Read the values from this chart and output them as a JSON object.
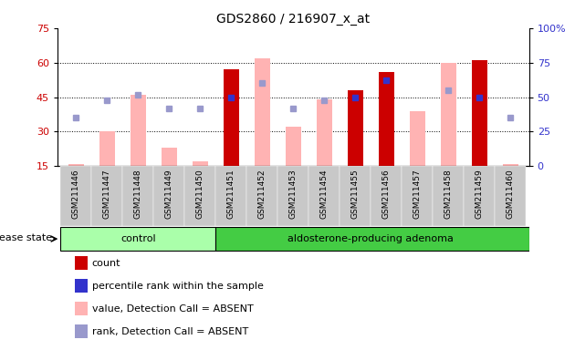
{
  "title": "GDS2860 / 216907_x_at",
  "samples": [
    "GSM211446",
    "GSM211447",
    "GSM211448",
    "GSM211449",
    "GSM211450",
    "GSM211451",
    "GSM211452",
    "GSM211453",
    "GSM211454",
    "GSM211455",
    "GSM211456",
    "GSM211457",
    "GSM211458",
    "GSM211459",
    "GSM211460"
  ],
  "count_bars": [
    0,
    0,
    0,
    0,
    0,
    57,
    0,
    0,
    0,
    48,
    56,
    0,
    0,
    61,
    0
  ],
  "pink_bars": [
    16,
    30,
    46,
    23,
    17,
    0,
    62,
    32,
    44,
    0,
    0,
    39,
    60,
    0,
    16
  ],
  "blue_squares_right": [
    0,
    0,
    0,
    0,
    0,
    50,
    0,
    0,
    0,
    50,
    62,
    0,
    0,
    50,
    0
  ],
  "light_blue_squares_right": [
    35,
    48,
    52,
    42,
    42,
    0,
    60,
    42,
    48,
    0,
    0,
    0,
    55,
    0,
    35
  ],
  "ylim_left": [
    15,
    75
  ],
  "ylim_right": [
    0,
    100
  ],
  "yticks_left": [
    15,
    30,
    45,
    60,
    75
  ],
  "yticks_right": [
    0,
    25,
    50,
    75,
    100
  ],
  "bar_color_count": "#cc0000",
  "bar_color_pink": "#ffb3b3",
  "square_color_blue": "#3333cc",
  "square_color_light": "#9999cc",
  "bg_xlabel": "#c8c8c8",
  "group_control_color": "#aaffaa",
  "group_adenoma_color": "#44cc44",
  "disease_state_label": "disease state",
  "legend_items": [
    {
      "color": "#cc0000",
      "label": "count"
    },
    {
      "color": "#3333cc",
      "label": "percentile rank within the sample"
    },
    {
      "color": "#ffb3b3",
      "label": "value, Detection Call = ABSENT"
    },
    {
      "color": "#9999cc",
      "label": "rank, Detection Call = ABSENT"
    }
  ]
}
